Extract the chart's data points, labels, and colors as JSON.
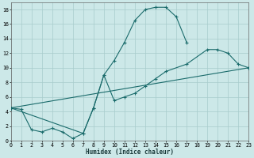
{
  "xlabel": "Humidex (Indice chaleur)",
  "background_color": "#cce8e8",
  "grid_color": "#a8cccc",
  "line_color": "#1a6b6b",
  "xlim": [
    0,
    23
  ],
  "ylim": [
    0,
    19
  ],
  "xticks": [
    0,
    1,
    2,
    3,
    4,
    5,
    6,
    7,
    8,
    9,
    10,
    11,
    12,
    13,
    14,
    15,
    16,
    17,
    18,
    19,
    20,
    21,
    22,
    23
  ],
  "yticks": [
    0,
    2,
    4,
    6,
    8,
    10,
    12,
    14,
    16,
    18
  ],
  "line1_x": [
    0,
    1,
    2,
    3,
    4,
    5,
    6,
    7,
    8,
    9,
    10,
    11,
    12,
    13,
    14,
    15,
    16,
    17
  ],
  "line1_y": [
    4.5,
    4.3,
    1.5,
    1.2,
    1.7,
    1.2,
    0.3,
    1.0,
    4.5,
    9.0,
    11.0,
    13.5,
    16.5,
    18.0,
    18.3,
    18.3,
    17.0,
    13.5
  ],
  "line2_x": [
    0,
    23
  ],
  "line2_y": [
    4.5,
    10.0
  ],
  "line3_x": [
    0,
    7,
    8,
    9,
    10,
    11,
    12,
    13,
    14,
    15,
    17,
    19,
    20,
    21,
    22,
    23
  ],
  "line3_y": [
    4.5,
    1.0,
    4.5,
    9.0,
    5.5,
    6.0,
    6.5,
    7.5,
    8.5,
    9.5,
    10.5,
    12.5,
    12.5,
    12.0,
    10.5,
    10.0
  ]
}
